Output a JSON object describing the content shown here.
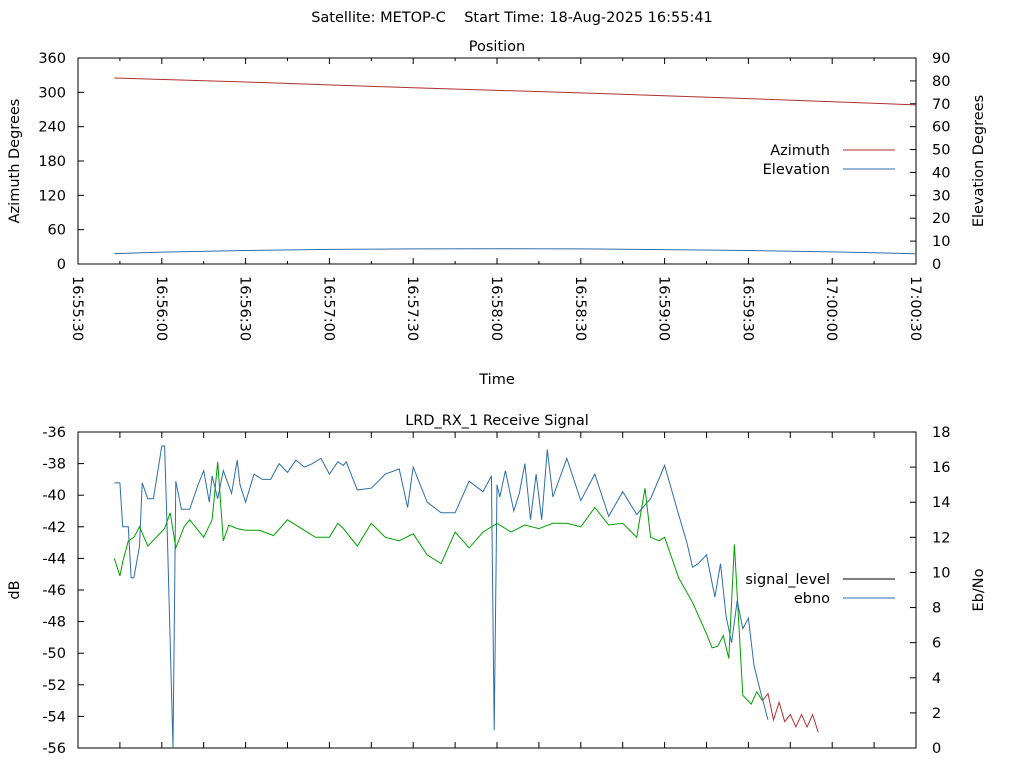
{
  "header": {
    "title": "Satellite: METOP-C    Start Time: 18-Aug-2025 16:55:41"
  },
  "chart_data": [
    {
      "type": "line",
      "title": "Position",
      "xlabel": "Time",
      "ylabel": "Azimuth Degrees",
      "y2label": "Elevation Degrees",
      "xlim": [
        "16:55:30",
        "17:00:30"
      ],
      "x_ticks": [
        "16:55:30",
        "16:56:00",
        "16:56:30",
        "16:57:00",
        "16:57:30",
        "16:58:00",
        "16:58:30",
        "16:59:00",
        "16:59:30",
        "17:00:00",
        "17:00:30"
      ],
      "ylim": [
        0,
        360
      ],
      "y_ticks": [
        "0",
        "60",
        "120",
        "180",
        "240",
        "300",
        "360"
      ],
      "y2lim": [
        0,
        90
      ],
      "y2_ticks": [
        "0",
        "10",
        "20",
        "30",
        "40",
        "50",
        "60",
        "70",
        "80",
        "90"
      ],
      "legend_position": "right",
      "series": [
        {
          "name": "Azimuth",
          "axis": "y",
          "color": "#b03030",
          "x": [
            "16:55:43",
            "16:56:30",
            "16:57:30",
            "16:58:30",
            "16:59:30",
            "17:00:30"
          ],
          "y": [
            325,
            318,
            308,
            299,
            289,
            278
          ]
        },
        {
          "name": "Elevation",
          "axis": "y2",
          "color": "#2f6ea8",
          "x": [
            "16:55:43",
            "16:56:00",
            "16:56:30",
            "16:57:00",
            "16:57:30",
            "16:58:00",
            "16:58:30",
            "16:59:00",
            "16:59:30",
            "17:00:00",
            "17:00:30"
          ],
          "y": [
            4.5,
            5.2,
            5.9,
            6.4,
            6.6,
            6.7,
            6.6,
            6.3,
            5.9,
            5.3,
            4.5
          ]
        }
      ]
    },
    {
      "type": "line",
      "title": "LRD_RX_1 Receive Signal",
      "xlabel": "",
      "ylabel": "dB",
      "y2label": "Eb/No",
      "xlim": [
        "16:55:30",
        "17:00:30"
      ],
      "ylim": [
        -56,
        -36
      ],
      "y_ticks": [
        "-36",
        "-38",
        "-40",
        "-42",
        "-44",
        "-46",
        "-48",
        "-50",
        "-52",
        "-54",
        "-56"
      ],
      "y2lim": [
        0,
        18
      ],
      "y2_ticks": [
        "0",
        "2",
        "4",
        "6",
        "8",
        "10",
        "12",
        "14",
        "16",
        "18"
      ],
      "legend_position": "right",
      "series": [
        {
          "name": "signal_level",
          "axis": "y",
          "color": "#000000",
          "x": [],
          "y": []
        },
        {
          "name": "ebno",
          "axis": "y2",
          "color": "#2f6ea8",
          "x": [
            "16:55:43",
            "16:55:45",
            "16:55:46",
            "16:55:48",
            "16:55:49",
            "16:55:50",
            "16:55:52",
            "16:55:53",
            "16:55:55",
            "16:55:57",
            "16:56:00",
            "16:56:01",
            "16:56:02",
            "16:56:04",
            "16:56:05",
            "16:56:07",
            "16:56:10",
            "16:56:13",
            "16:56:15",
            "16:56:17",
            "16:56:18",
            "16:56:20",
            "16:56:22",
            "16:56:25",
            "16:56:27",
            "16:56:28",
            "16:56:30",
            "16:56:33",
            "16:56:36",
            "16:56:39",
            "16:56:42",
            "16:56:45",
            "16:56:48",
            "16:56:51",
            "16:56:54",
            "16:56:57",
            "16:57:00",
            "16:57:03",
            "16:57:05",
            "16:57:06",
            "16:57:10",
            "16:57:15",
            "16:57:20",
            "16:57:25",
            "16:57:28",
            "16:57:30",
            "16:57:35",
            "16:57:40",
            "16:57:45",
            "16:57:50",
            "16:57:55",
            "16:57:58",
            "16:57:59",
            "16:58:00",
            "16:58:01",
            "16:58:03",
            "16:58:06",
            "16:58:08",
            "16:58:10",
            "16:58:12",
            "16:58:14",
            "16:58:16",
            "16:58:18",
            "16:58:20",
            "16:58:25",
            "16:58:30",
            "16:58:35",
            "16:58:40",
            "16:58:45",
            "16:58:50",
            "16:58:55",
            "16:59:00",
            "16:59:05",
            "16:59:08",
            "16:59:10",
            "16:59:12",
            "16:59:15",
            "16:59:18",
            "16:59:20",
            "16:59:22",
            "16:59:24",
            "16:59:26",
            "16:59:28",
            "16:59:30",
            "16:59:32",
            "16:59:34",
            "16:59:37"
          ],
          "y": [
            15.1,
            15.1,
            12.6,
            12.6,
            9.7,
            9.7,
            11.5,
            15.1,
            14.2,
            14.2,
            17.2,
            17.2,
            12.0,
            0.0,
            15.2,
            13.6,
            13.6,
            15.0,
            15.8,
            14.0,
            15.5,
            14.2,
            15.8,
            14.5,
            16.4,
            15.0,
            14.0,
            15.6,
            15.3,
            15.3,
            16.2,
            15.7,
            16.4,
            16.0,
            16.2,
            16.5,
            15.6,
            16.3,
            16.1,
            16.3,
            14.7,
            14.8,
            15.6,
            15.9,
            13.7,
            16.0,
            14.0,
            13.4,
            13.4,
            15.2,
            14.6,
            15.5,
            1.0,
            15.0,
            14.3,
            15.8,
            13.5,
            14.5,
            16.2,
            13.0,
            15.6,
            13.0,
            17.0,
            14.3,
            16.5,
            14.1,
            15.6,
            13.2,
            14.6,
            13.3,
            14.2,
            16.1,
            13.3,
            11.7,
            10.3,
            10.5,
            11.0,
            8.6,
            10.5,
            7.5,
            6.0,
            8.4,
            6.8,
            7.4,
            4.7,
            3.4,
            1.6
          ]
        },
        {
          "name": "",
          "axis": "y2",
          "color": "#00a000",
          "x": [
            "16:55:43",
            "16:55:45",
            "16:55:46",
            "16:55:48",
            "16:55:50",
            "16:55:52",
            "16:55:55",
            "16:55:58",
            "16:56:01",
            "16:56:03",
            "16:56:05",
            "16:56:08",
            "16:56:10",
            "16:56:12",
            "16:56:15",
            "16:56:18",
            "16:56:20",
            "16:56:22",
            "16:56:24",
            "16:56:27",
            "16:56:30",
            "16:56:35",
            "16:56:40",
            "16:56:45",
            "16:56:50",
            "16:56:55",
            "16:57:00",
            "16:57:03",
            "16:57:05",
            "16:57:10",
            "16:57:15",
            "16:57:20",
            "16:57:25",
            "16:57:30",
            "16:57:35",
            "16:57:40",
            "16:57:45",
            "16:57:50",
            "16:57:55",
            "16:58:00",
            "16:58:05",
            "16:58:10",
            "16:58:15",
            "16:58:20",
            "16:58:25",
            "16:58:30",
            "16:58:35",
            "16:58:40",
            "16:58:45",
            "16:58:50",
            "16:58:53",
            "16:58:55",
            "16:58:58",
            "16:59:00",
            "16:59:05",
            "16:59:10",
            "16:59:15",
            "16:59:17",
            "16:59:19",
            "16:59:21",
            "16:59:23",
            "16:59:25",
            "16:59:28",
            "16:59:31",
            "16:59:33",
            "16:59:35"
          ],
          "y": [
            10.8,
            9.8,
            10.6,
            11.8,
            12.0,
            12.6,
            11.5,
            12.0,
            12.5,
            13.4,
            11.4,
            12.6,
            13.0,
            12.6,
            12.0,
            13.0,
            16.3,
            11.8,
            12.7,
            12.5,
            12.4,
            12.4,
            12.1,
            13.0,
            12.5,
            12.0,
            12.0,
            12.8,
            12.5,
            11.5,
            12.8,
            12.0,
            11.8,
            12.2,
            11.0,
            10.5,
            12.3,
            11.4,
            12.3,
            12.8,
            12.3,
            12.7,
            12.5,
            12.8,
            12.8,
            12.6,
            13.7,
            12.7,
            12.8,
            12.0,
            14.8,
            12.0,
            11.8,
            12.0,
            9.7,
            8.3,
            6.5,
            5.7,
            5.8,
            6.4,
            5.1,
            11.6,
            3.0,
            2.5,
            3.2,
            2.7
          ]
        },
        {
          "name": "",
          "axis": "y2",
          "color": "#b03030",
          "x": [
            "16:59:35",
            "16:59:37",
            "16:59:39",
            "16:59:41",
            "16:59:43",
            "16:59:45",
            "16:59:47",
            "16:59:49",
            "16:59:51",
            "16:59:53",
            "16:59:55"
          ],
          "y": [
            2.7,
            3.1,
            1.6,
            2.6,
            1.5,
            1.9,
            1.2,
            1.9,
            1.2,
            1.9,
            0.9
          ]
        }
      ]
    }
  ]
}
